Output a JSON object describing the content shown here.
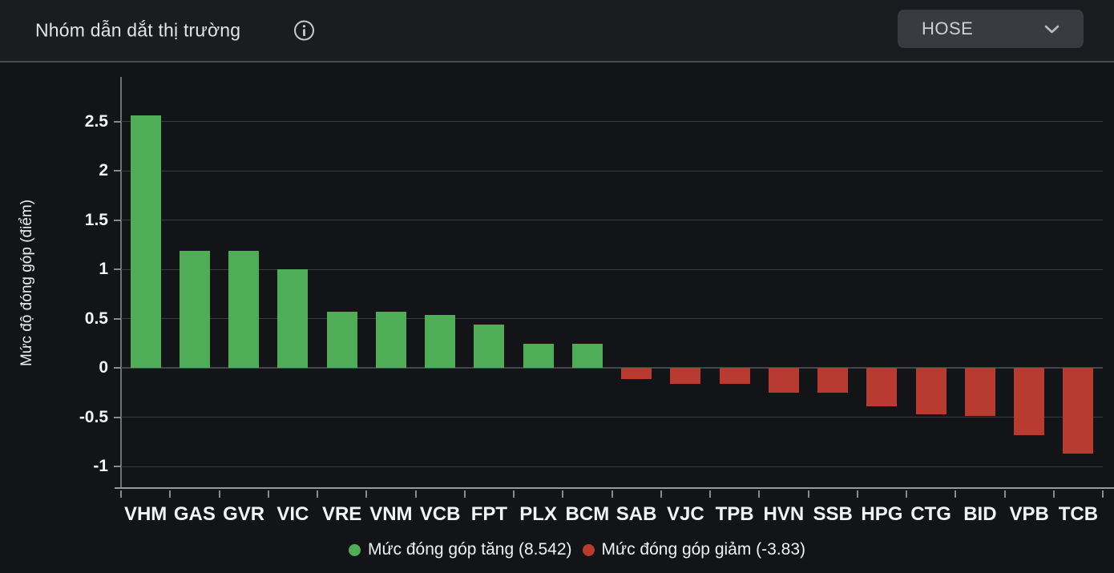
{
  "header": {
    "title": "Nhóm dẫn dắt thị trường",
    "exchange": {
      "value": "HOSE"
    }
  },
  "chart_data": {
    "type": "bar",
    "title": "Nhóm dẫn dắt thị trường",
    "xlabel": "",
    "ylabel": "Mức độ đóng góp (điểm)",
    "categories": [
      "VHM",
      "GAS",
      "GVR",
      "VIC",
      "VRE",
      "VNM",
      "VCB",
      "FPT",
      "PLX",
      "BCM",
      "SAB",
      "VJC",
      "TPB",
      "HVN",
      "SSB",
      "HPG",
      "CTG",
      "BID",
      "VPB",
      "TCB"
    ],
    "values": [
      2.56,
      1.19,
      1.19,
      1.0,
      0.57,
      0.57,
      0.54,
      0.44,
      0.24,
      0.24,
      -0.11,
      -0.16,
      -0.16,
      -0.25,
      -0.25,
      -0.39,
      -0.47,
      -0.49,
      -0.68,
      -0.87
    ],
    "ylim": [
      -1.23,
      2.95
    ],
    "yticks": [
      2.5,
      2,
      1.5,
      1,
      0.5,
      0,
      -0.5,
      -1
    ],
    "ytick_labels": [
      "2.5",
      "2",
      "1.5",
      "1",
      "0.5",
      "0",
      "-0.5",
      "-1"
    ],
    "grid": true,
    "legend_position": "bottom",
    "positive_total": "8.542",
    "negative_total": "-3.83",
    "colors": {
      "positive": "#4fad57",
      "negative": "#b93a31"
    },
    "legend": [
      {
        "label": "Mức đóng góp tăng (8.542)",
        "color": "#4fad57"
      },
      {
        "label": "Mức đóng góp giảm (-3.83)",
        "color": "#b93a31"
      }
    ]
  }
}
